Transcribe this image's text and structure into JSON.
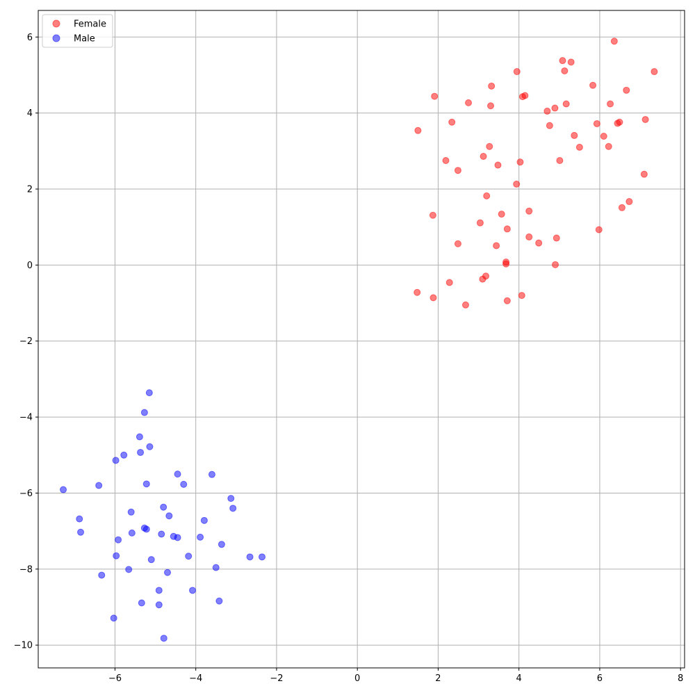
{
  "chart_data": {
    "type": "scatter",
    "title": "",
    "xlabel": "",
    "ylabel": "",
    "xlim": [
      -7.9,
      8.1
    ],
    "ylim": [
      -10.6,
      6.7
    ],
    "xticks": [
      -6,
      -4,
      -2,
      0,
      2,
      4,
      6,
      8
    ],
    "yticks": [
      -10,
      -8,
      -6,
      -4,
      -2,
      0,
      2,
      4,
      6
    ],
    "grid": true,
    "legend_position": "top-left",
    "series": [
      {
        "name": "Female",
        "color": "#ff0000",
        "points": [
          [
            6.36,
            5.89
          ],
          [
            5.08,
            5.38
          ],
          [
            5.29,
            5.34
          ],
          [
            3.95,
            5.09
          ],
          [
            5.13,
            5.11
          ],
          [
            7.35,
            5.09
          ],
          [
            3.32,
            4.71
          ],
          [
            5.83,
            4.73
          ],
          [
            6.66,
            4.6
          ],
          [
            1.91,
            4.44
          ],
          [
            4.09,
            4.43
          ],
          [
            4.15,
            4.46
          ],
          [
            2.75,
            4.27
          ],
          [
            5.17,
            4.24
          ],
          [
            3.3,
            4.19
          ],
          [
            6.26,
            4.24
          ],
          [
            4.89,
            4.13
          ],
          [
            4.7,
            4.05
          ],
          [
            2.34,
            3.76
          ],
          [
            7.13,
            3.83
          ],
          [
            5.93,
            3.72
          ],
          [
            6.49,
            3.76
          ],
          [
            6.44,
            3.73
          ],
          [
            4.76,
            3.67
          ],
          [
            1.5,
            3.54
          ],
          [
            5.37,
            3.41
          ],
          [
            6.1,
            3.39
          ],
          [
            3.27,
            3.12
          ],
          [
            5.5,
            3.1
          ],
          [
            6.22,
            3.12
          ],
          [
            3.12,
            2.86
          ],
          [
            2.19,
            2.75
          ],
          [
            5.01,
            2.75
          ],
          [
            4.03,
            2.71
          ],
          [
            3.48,
            2.63
          ],
          [
            2.49,
            2.49
          ],
          [
            7.1,
            2.39
          ],
          [
            3.94,
            2.13
          ],
          [
            3.2,
            1.82
          ],
          [
            6.73,
            1.67
          ],
          [
            6.55,
            1.51
          ],
          [
            4.25,
            1.42
          ],
          [
            3.57,
            1.34
          ],
          [
            1.87,
            1.31
          ],
          [
            3.04,
            1.11
          ],
          [
            3.71,
            0.95
          ],
          [
            5.98,
            0.93
          ],
          [
            4.25,
            0.74
          ],
          [
            4.93,
            0.71
          ],
          [
            4.49,
            0.58
          ],
          [
            2.49,
            0.56
          ],
          [
            3.44,
            0.51
          ],
          [
            3.68,
            0.08
          ],
          [
            3.68,
            0.03
          ],
          [
            4.9,
            0.01
          ],
          [
            3.18,
            -0.29
          ],
          [
            3.1,
            -0.37
          ],
          [
            2.28,
            -0.46
          ],
          [
            1.48,
            -0.72
          ],
          [
            4.07,
            -0.8
          ],
          [
            1.88,
            -0.86
          ],
          [
            3.71,
            -0.94
          ],
          [
            2.68,
            -1.05
          ]
        ]
      },
      {
        "name": "Male",
        "color": "#0000ff",
        "points": [
          [
            -5.15,
            -3.36
          ],
          [
            -5.27,
            -3.88
          ],
          [
            -5.39,
            -4.52
          ],
          [
            -5.14,
            -4.78
          ],
          [
            -5.37,
            -4.93
          ],
          [
            -5.78,
            -5.0
          ],
          [
            -5.98,
            -5.14
          ],
          [
            -4.45,
            -5.5
          ],
          [
            -3.6,
            -5.51
          ],
          [
            -5.22,
            -5.76
          ],
          [
            -4.3,
            -5.77
          ],
          [
            -6.4,
            -5.8
          ],
          [
            -7.28,
            -5.91
          ],
          [
            -3.13,
            -6.14
          ],
          [
            -3.08,
            -6.4
          ],
          [
            -4.8,
            -6.37
          ],
          [
            -5.6,
            -6.5
          ],
          [
            -4.66,
            -6.6
          ],
          [
            -6.88,
            -6.68
          ],
          [
            -3.79,
            -6.72
          ],
          [
            -5.27,
            -6.92
          ],
          [
            -5.22,
            -6.95
          ],
          [
            -5.58,
            -7.05
          ],
          [
            -4.85,
            -7.08
          ],
          [
            -6.85,
            -7.03
          ],
          [
            -4.55,
            -7.14
          ],
          [
            -4.45,
            -7.17
          ],
          [
            -3.89,
            -7.16
          ],
          [
            -5.92,
            -7.23
          ],
          [
            -3.36,
            -7.35
          ],
          [
            -5.97,
            -7.65
          ],
          [
            -4.18,
            -7.66
          ],
          [
            -2.66,
            -7.68
          ],
          [
            -2.36,
            -7.68
          ],
          [
            -5.1,
            -7.75
          ],
          [
            -3.5,
            -7.96
          ],
          [
            -5.66,
            -8.01
          ],
          [
            -4.7,
            -8.09
          ],
          [
            -6.33,
            -8.16
          ],
          [
            -4.91,
            -8.56
          ],
          [
            -4.08,
            -8.56
          ],
          [
            -3.42,
            -8.84
          ],
          [
            -5.34,
            -8.89
          ],
          [
            -4.91,
            -8.94
          ],
          [
            -6.03,
            -9.29
          ],
          [
            -4.79,
            -9.82
          ]
        ]
      }
    ]
  }
}
